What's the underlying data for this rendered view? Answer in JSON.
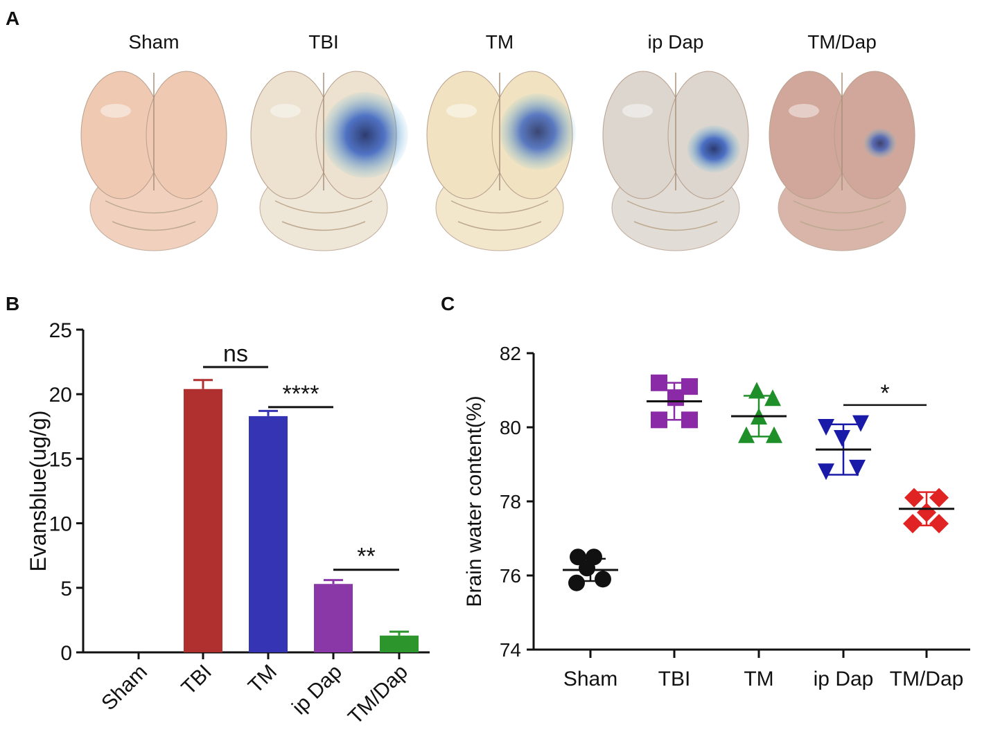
{
  "figure": {
    "panel_labels": {
      "a": "A",
      "b": "B",
      "c": "C"
    },
    "panel_a": {
      "description_title": "Brain photographs",
      "groups": [
        "Sham",
        "TBI",
        "TM",
        "ip Dap",
        "TM/Dap"
      ],
      "tissue_colors": [
        "#efc9b2",
        "#ece2cf",
        "#f1e3c2",
        "#dcd6cf",
        "#d2a79b"
      ],
      "stain_color": "#2050c0",
      "stain_dark_color": "#0c1f5e"
    }
  },
  "chart_data": [
    {
      "type": "bar",
      "title": "",
      "xlabel": "",
      "ylabel": "Evansblue(ug/g)",
      "ylim": [
        0,
        25
      ],
      "yticks": [
        0,
        5,
        10,
        15,
        20,
        25
      ],
      "categories": [
        "Sham",
        "TBI",
        "TM",
        "ip Dap",
        "TM/Dap"
      ],
      "values": [
        0,
        20.4,
        18.3,
        5.3,
        1.3
      ],
      "errors": [
        0,
        0.7,
        0.4,
        0.3,
        0.3
      ],
      "colors": [
        "#b03030",
        "#b03030",
        "#3434b4",
        "#8a38a8",
        "#2c952c"
      ],
      "significance": [
        {
          "from": 1,
          "to": 2,
          "y": 22.1,
          "label": "ns"
        },
        {
          "from": 2,
          "to": 3,
          "y": 19.0,
          "label": "****"
        },
        {
          "from": 3,
          "to": 4,
          "y": 6.4,
          "label": "**"
        }
      ]
    },
    {
      "type": "scatter",
      "title": "",
      "xlabel": "",
      "ylabel": "Brain water content(%)",
      "ylim": [
        74,
        82
      ],
      "yticks": [
        74,
        76,
        78,
        80,
        82
      ],
      "categories": [
        "Sham",
        "TBI",
        "TM",
        "ip Dap",
        "TM/Dap"
      ],
      "series": [
        {
          "name": "Sham",
          "marker": "circle",
          "color": "#111111",
          "points": [
            [
              -0.18,
              76.5
            ],
            [
              0.05,
              76.5
            ],
            [
              -0.05,
              76.2
            ],
            [
              -0.2,
              75.8
            ],
            [
              0.18,
              75.9
            ]
          ],
          "mean": 76.15,
          "sd": 0.3
        },
        {
          "name": "TBI",
          "marker": "square",
          "color": "#8a2aa6",
          "points": [
            [
              -0.22,
              81.2
            ],
            [
              0.22,
              81.1
            ],
            [
              0.02,
              80.8
            ],
            [
              -0.22,
              80.2
            ],
            [
              0.22,
              80.2
            ]
          ],
          "mean": 80.7,
          "sd": 0.5
        },
        {
          "name": "TM",
          "marker": "triangle-up",
          "color": "#1f8f2a",
          "points": [
            [
              -0.03,
              81.0
            ],
            [
              0.2,
              80.8
            ],
            [
              0.0,
              80.3
            ],
            [
              -0.18,
              79.8
            ],
            [
              0.22,
              79.8
            ]
          ],
          "mean": 80.3,
          "sd": 0.55
        },
        {
          "name": "ip Dap",
          "marker": "triangle-down",
          "color": "#1a1aa8",
          "points": [
            [
              -0.25,
              80.0
            ],
            [
              0.25,
              80.1
            ],
            [
              -0.02,
              79.7
            ],
            [
              -0.25,
              78.8
            ],
            [
              0.2,
              78.9
            ]
          ],
          "mean": 79.4,
          "sd": 0.68
        },
        {
          "name": "TM/Dap",
          "marker": "diamond",
          "color": "#e02424",
          "points": [
            [
              -0.18,
              78.1
            ],
            [
              0.18,
              78.1
            ],
            [
              -0.2,
              77.4
            ],
            [
              0.0,
              77.7
            ],
            [
              0.18,
              77.4
            ]
          ],
          "mean": 77.8,
          "sd": 0.45
        }
      ],
      "significance": [
        {
          "from": 3,
          "to": 4,
          "y": 80.6,
          "label": "*"
        }
      ]
    }
  ]
}
